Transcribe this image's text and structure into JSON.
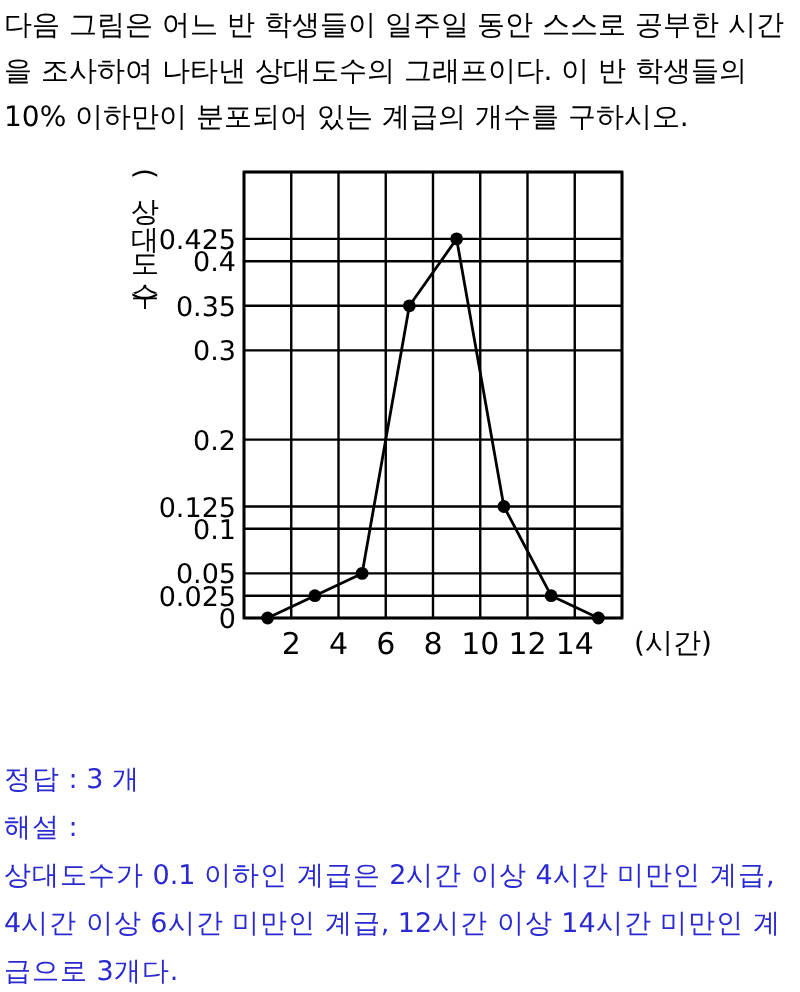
{
  "chart_data": {
    "type": "line",
    "title": "다음 그림은 어느 반 학생들이 일주일 동안 스스로 공부한 시간을 조사하여 나타낸 상대도수의 그래프이다. 이 반 학생들의 10% 이하만이 분포되어 있는 계급의 개수를 구하시오.",
    "xlabel": "(시간)",
    "ylabel": "(상대도수)",
    "x": [
      1,
      3,
      5,
      7,
      9,
      11,
      13,
      15
    ],
    "values": [
      0,
      0.025,
      0.05,
      0.35,
      0.425,
      0.125,
      0.025,
      0
    ],
    "color": "#000000",
    "xlim": [
      0,
      16
    ],
    "xticks": [
      {
        "value": 0,
        "label": null
      },
      2,
      4,
      6,
      8,
      10,
      12,
      14,
      {
        "value": 16,
        "label": null
      }
    ],
    "ylim": [
      0,
      0.5
    ],
    "yticks": [
      0,
      0.025,
      0.05,
      0.1,
      0.125,
      0.2,
      0.3,
      0.35,
      0.4,
      0.425,
      {
        "value": 0.5,
        "label": null
      }
    ],
    "grid": true,
    "marker": "circle",
    "annotations": [
      "정답 : 3 개",
      "해설 :",
      "상대도수가 0.1 이하인 계급은 2시간 이상 4시간 미만인 계급, 4시간 이상 6시간 미만인 계급, 12시간 이상 14시간 미만인 계급으로 3개다."
    ]
  }
}
